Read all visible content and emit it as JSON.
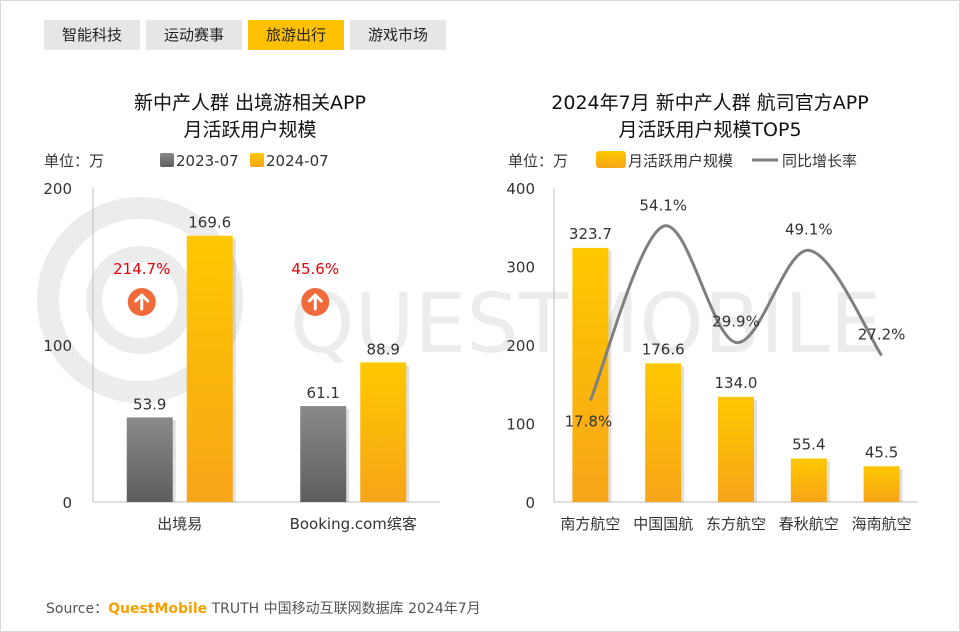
{
  "tabs": [
    {
      "label": "智能科技",
      "active": false
    },
    {
      "label": "运动赛事",
      "active": false
    },
    {
      "label": "旅游出行",
      "active": true
    },
    {
      "label": "游戏市场",
      "active": false
    }
  ],
  "watermark": "QUESTMOBILE",
  "chart_data": [
    {
      "type": "bar",
      "title_line1": "新中产人群 出境游相关APP",
      "title_line2": "月活跃用户规模",
      "unit_label": "单位：万",
      "categories": [
        "出境易",
        "Booking.com缤客"
      ],
      "series": [
        {
          "name": "2023-07",
          "values": [
            53.9,
            61.1
          ],
          "value_labels": [
            "53.9",
            "61.1"
          ],
          "color": "#8c8c8c"
        },
        {
          "name": "2024-07",
          "values": [
            169.6,
            88.9
          ],
          "value_labels": [
            "169.6",
            "88.9"
          ],
          "color": "#ffc000"
        }
      ],
      "growth": [
        "214.7%",
        "45.6%"
      ],
      "growth_color": "#e8000b",
      "arrow_color": "#f06a3b",
      "ylim": [
        0,
        200
      ],
      "yticks": [
        "0",
        "100",
        "200"
      ],
      "ytick_values": [
        0,
        100,
        200
      ]
    },
    {
      "type": "bar+line",
      "title_line1": "2024年7月 新中产人群 航司官方APP",
      "title_line2": "月活跃用户规模TOP5",
      "unit_label": "单位：万",
      "categories": [
        "南方航空",
        "中国国航",
        "东方航空",
        "春秋航空",
        "海南航空"
      ],
      "bar_series": {
        "name": "月活跃用户规模",
        "values": [
          323.7,
          176.6,
          134.0,
          55.4,
          45.5
        ],
        "value_labels": [
          "323.7",
          "176.6",
          "134.0",
          "55.4",
          "45.5"
        ],
        "color": "#ffc000"
      },
      "line_series": {
        "name": "同比增长率",
        "values": [
          17.8,
          54.1,
          29.9,
          49.1,
          27.2
        ],
        "value_labels": [
          "17.8%",
          "54.1%",
          "29.9%",
          "49.1%",
          "27.2%"
        ],
        "color": "#7f7f7f"
      },
      "ylim": [
        0,
        400
      ],
      "yticks": [
        "0",
        "100",
        "200",
        "300",
        "400"
      ],
      "ytick_values": [
        0,
        100,
        200,
        300,
        400
      ]
    }
  ],
  "source": {
    "prefix": "Source：",
    "brand": "QuestMobile",
    "rest": " TRUTH 中国移动互联网数据库 2024年7月"
  }
}
